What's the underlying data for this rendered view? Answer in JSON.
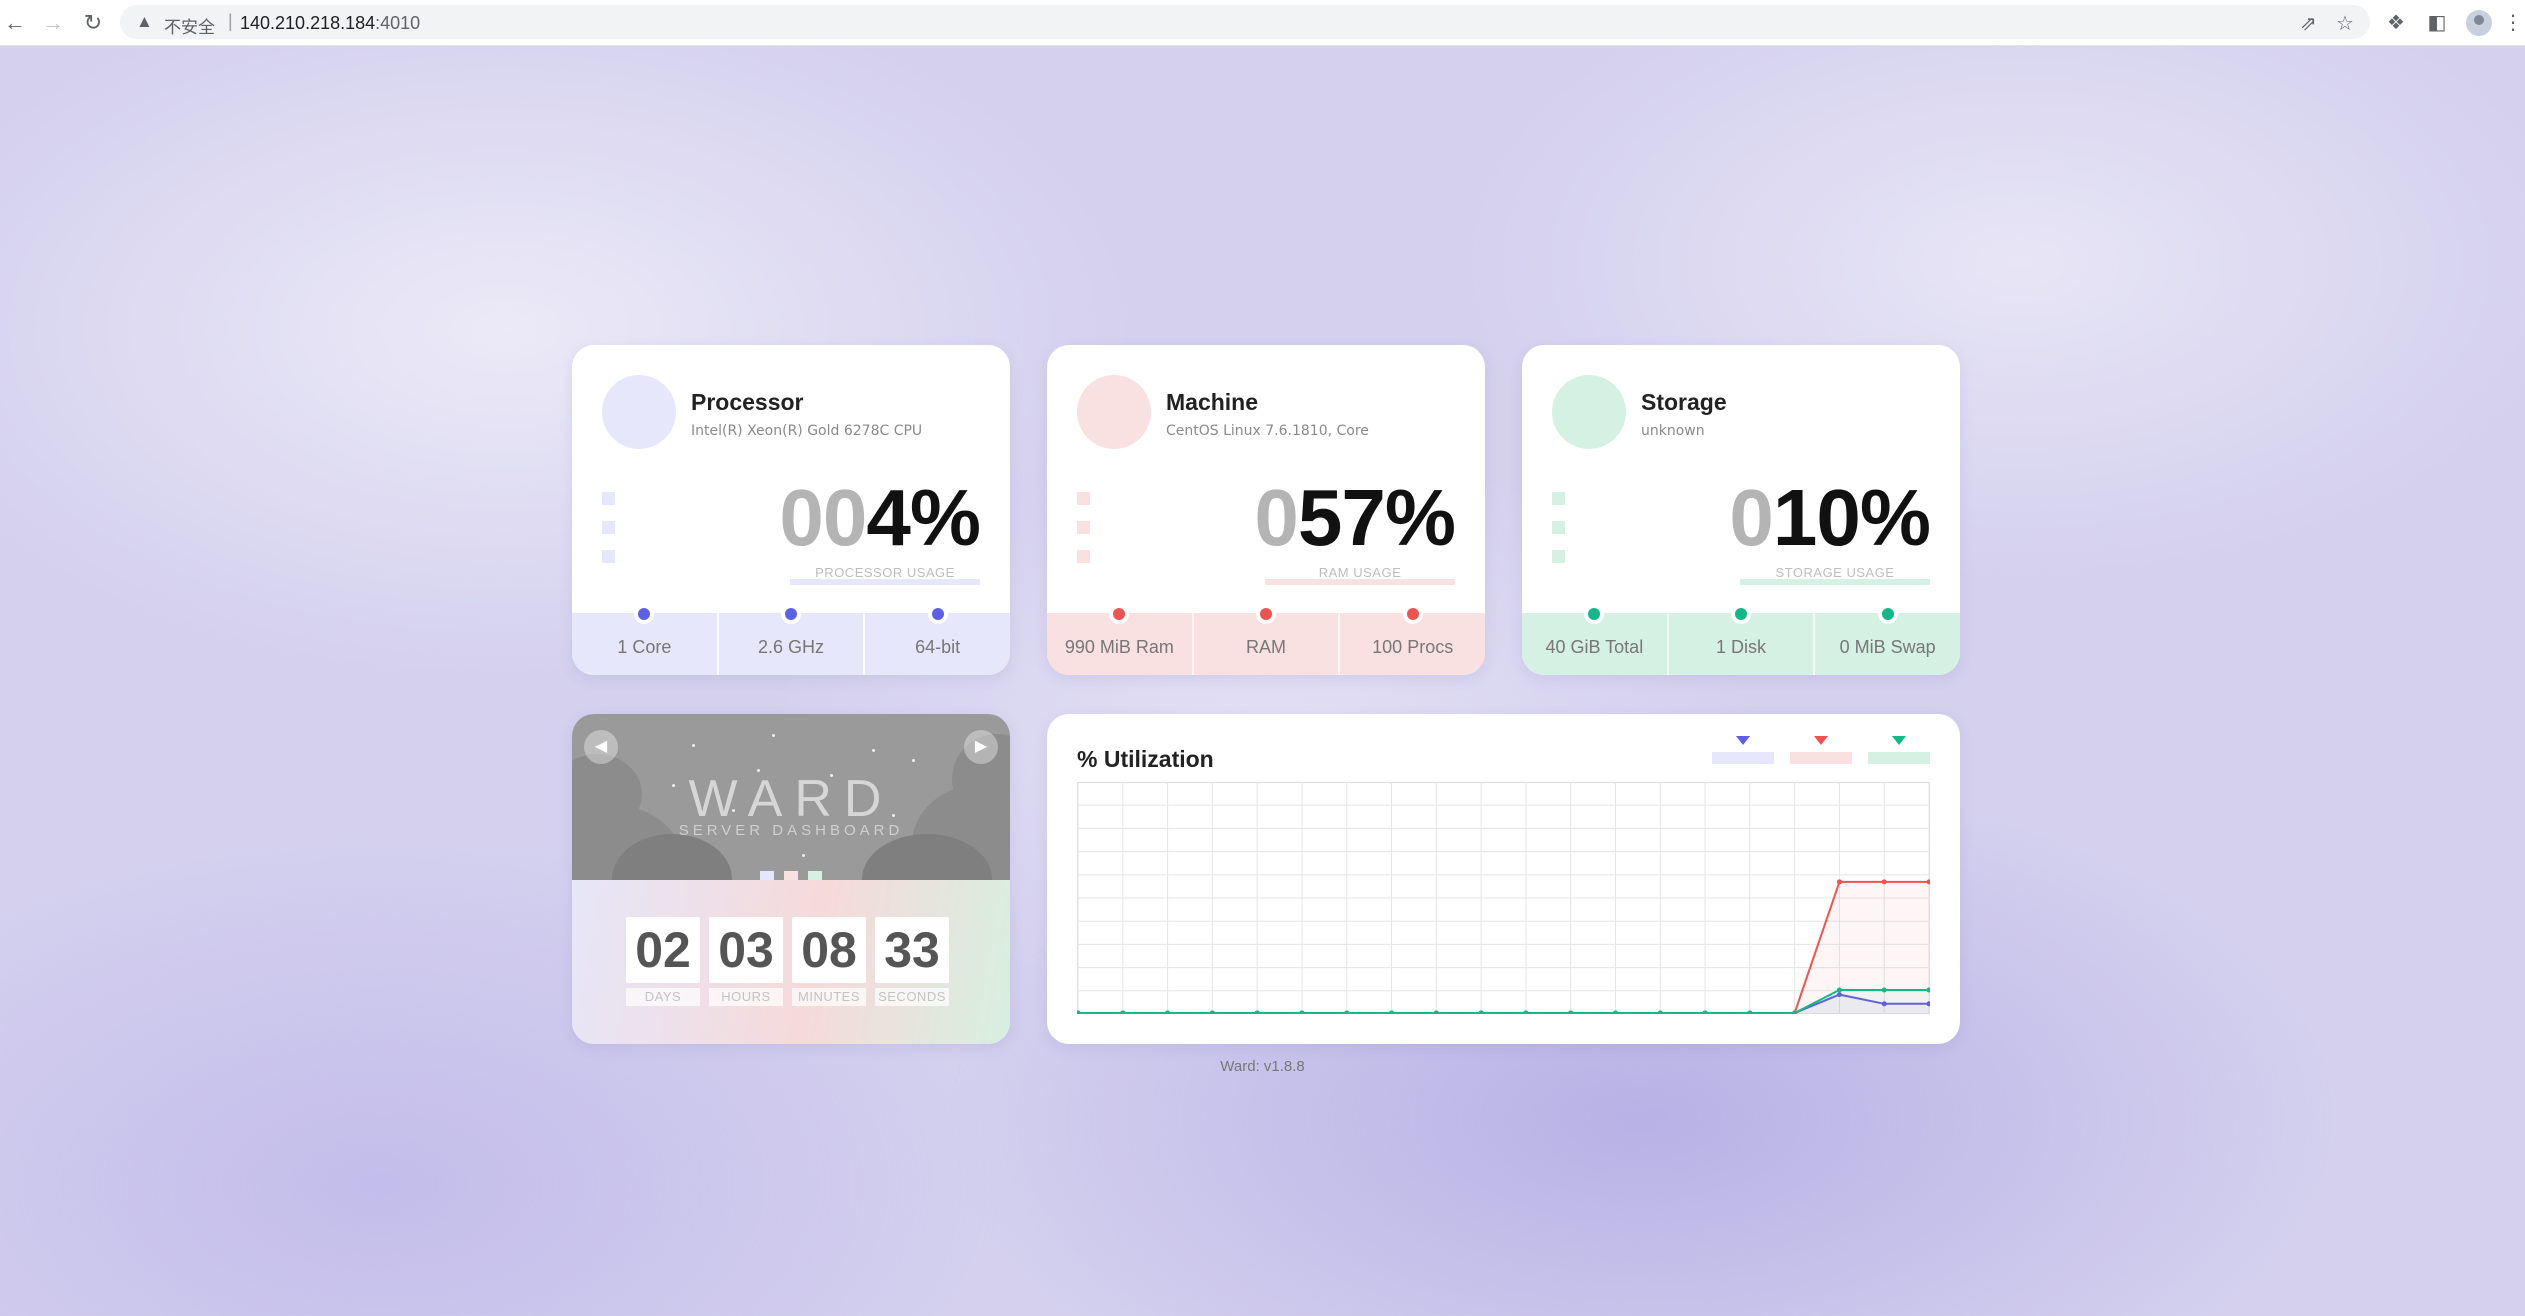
{
  "browser": {
    "security_label": "不安全",
    "separator": "|",
    "url_host": "140.210.218.184",
    "url_port": ":4010"
  },
  "cards": {
    "processor": {
      "title": "Processor",
      "subtitle": "Intel(R) Xeon(R) Gold 6278C CPU",
      "percent_lead": "00",
      "percent_value": "4%",
      "caption": "PROCESSOR USAGE",
      "stats": [
        "1 Core",
        "2.6 GHz",
        "64-bit"
      ],
      "colors": {
        "accent": "#5d60e6",
        "soft": "#e6e7fb"
      }
    },
    "machine": {
      "title": "Machine",
      "subtitle": "CentOS Linux 7.6.1810, Core",
      "percent_lead": "0",
      "percent_value": "57%",
      "caption": "RAM USAGE",
      "stats": [
        "990 MiB Ram",
        "RAM",
        "100 Procs"
      ],
      "colors": {
        "accent": "#ef5350",
        "soft": "#f9e1e1"
      }
    },
    "storage": {
      "title": "Storage",
      "subtitle": "unknown",
      "percent_lead": "0",
      "percent_value": "10%",
      "caption": "STORAGE USAGE",
      "stats": [
        "40 GiB Total",
        "1 Disk",
        "0 MiB Swap"
      ],
      "colors": {
        "accent": "#12b886",
        "soft": "#d5f1e3"
      }
    }
  },
  "ward": {
    "logo": "WARD",
    "tagline": "SERVER DASHBOARD",
    "uptime": [
      {
        "value": "02",
        "label": "DAYS"
      },
      {
        "value": "03",
        "label": "HOURS"
      },
      {
        "value": "08",
        "label": "MINUTES"
      },
      {
        "value": "33",
        "label": "SECONDS"
      }
    ]
  },
  "chart_data": {
    "type": "line",
    "title": "% Utilization",
    "ylim": [
      0,
      100
    ],
    "x": [
      1,
      2,
      3,
      4,
      5,
      6,
      7,
      8,
      9,
      10,
      11,
      12,
      13,
      14,
      15,
      16,
      17,
      18,
      19,
      20
    ],
    "series": [
      {
        "color": "#5d60e6",
        "values": [
          0,
          0,
          0,
          0,
          0,
          0,
          0,
          0,
          0,
          0,
          0,
          0,
          0,
          0,
          0,
          0,
          0,
          8,
          4,
          4
        ]
      },
      {
        "color": "#ef5350",
        "values": [
          0,
          0,
          0,
          0,
          0,
          0,
          0,
          0,
          0,
          0,
          0,
          0,
          0,
          0,
          0,
          0,
          0,
          57,
          57,
          57
        ]
      },
      {
        "color": "#12b886",
        "values": [
          0,
          0,
          0,
          0,
          0,
          0,
          0,
          0,
          0,
          0,
          0,
          0,
          0,
          0,
          0,
          0,
          0,
          10,
          10,
          10
        ]
      }
    ],
    "legend_placement": "top-right",
    "grid": true
  },
  "footer": {
    "version": "Ward: v1.8.8"
  }
}
